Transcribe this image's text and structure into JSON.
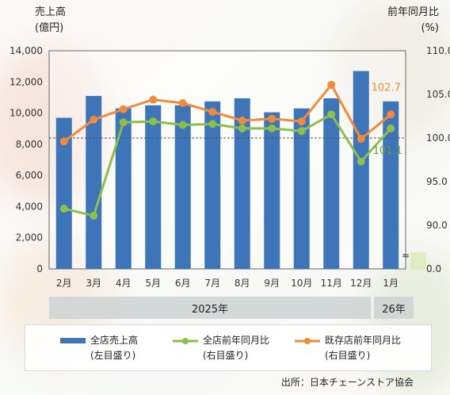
{
  "chart_data": {
    "type": "bar+line",
    "categories": [
      "2月",
      "3月",
      "4月",
      "5月",
      "6月",
      "7月",
      "8月",
      "9月",
      "10月",
      "11月",
      "12月",
      "1月"
    ],
    "year_labels": [
      "2025年",
      "26年"
    ],
    "left_axis": {
      "title_line1": "売上高",
      "title_line2": "(億円)",
      "ylim": [
        0,
        14000
      ],
      "ticks": [
        "14,000",
        "12,000",
        "10,000",
        "8,000",
        "6,000",
        "4,000",
        "2,000",
        "0"
      ]
    },
    "right_axis": {
      "title_line1": "前年同月比",
      "title_line2": "(%)",
      "ylim": [
        90,
        110
      ],
      "broken_bottom": "0.0",
      "ticks": [
        "110.0",
        "105.0",
        "100.0",
        "95.0",
        "90.0",
        "0.0"
      ]
    },
    "reference_line": 100.0,
    "series": [
      {
        "name": "全店売上高",
        "note": "(左目盛り)",
        "type": "bar",
        "axis": "left",
        "color": "#3e74b8",
        "values": [
          9700,
          11100,
          10300,
          10500,
          10500,
          10750,
          10950,
          10050,
          10300,
          10950,
          12700,
          10750
        ]
      },
      {
        "name": "全店前年同月比",
        "note": "(右目盛り)",
        "type": "line",
        "axis": "right",
        "color": "#8dbf4e",
        "values": [
          91.9,
          91.1,
          101.8,
          101.9,
          101.5,
          101.6,
          101.1,
          101.1,
          100.8,
          102.7,
          97.3,
          101.1
        ]
      },
      {
        "name": "既存店前年同月比",
        "note": "(右目盛り)",
        "type": "line",
        "axis": "right",
        "color": "#f08a3c",
        "values": [
          99.6,
          102.1,
          103.3,
          104.4,
          104.0,
          103.0,
          102.0,
          102.2,
          101.9,
          106.1,
          99.9,
          102.7
        ]
      }
    ],
    "data_labels": [
      {
        "series": "既存店前年同月比",
        "text": "102.7"
      },
      {
        "series": "全店前年同月比",
        "text": "101.1"
      }
    ],
    "legend_position": "bottom",
    "axis_break_symbol": "≈"
  },
  "source": "出所：日本チェーンストア協会"
}
